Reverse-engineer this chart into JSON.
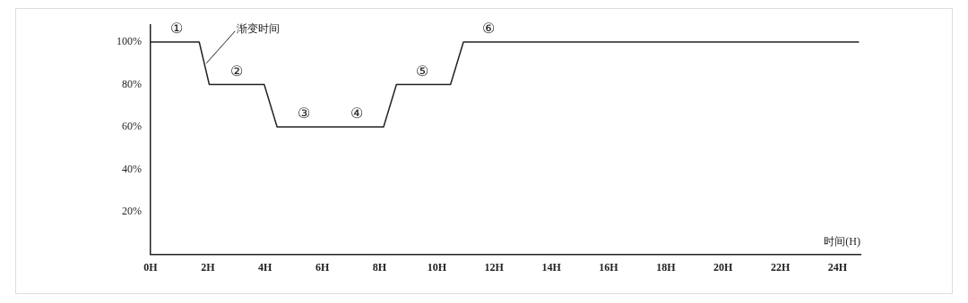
{
  "chart_data": {
    "type": "line",
    "xlabel": "时间(H)",
    "x": [
      0,
      1.7,
      2.05,
      3.97,
      4.42,
      8.14,
      8.59,
      10.48,
      10.93,
      24.75
    ],
    "series": [
      {
        "color": "#222222",
        "values": [
          100,
          100,
          80,
          80,
          60,
          60,
          80,
          80,
          100,
          100
        ]
      }
    ],
    "xlim": [
      0,
      24.8
    ],
    "xticks": [
      {
        "value": 0,
        "label": "0H"
      },
      {
        "value": 2,
        "label": "2H"
      },
      {
        "value": 4,
        "label": "4H"
      },
      {
        "value": 6,
        "label": "6H"
      },
      {
        "value": 8,
        "label": "8H"
      },
      {
        "value": 10,
        "label": "10H"
      },
      {
        "value": 12,
        "label": "12H"
      },
      {
        "value": 14,
        "label": "14H"
      },
      {
        "value": 16,
        "label": "16H"
      },
      {
        "value": 18,
        "label": "18H"
      },
      {
        "value": 20,
        "label": "20H"
      },
      {
        "value": 22,
        "label": "22H"
      },
      {
        "value": 24,
        "label": "24H"
      }
    ],
    "ylim": [
      0,
      108
    ],
    "yticks": [
      {
        "value": 20,
        "label": "20%"
      },
      {
        "value": 40,
        "label": "40%"
      },
      {
        "value": 60,
        "label": "60%"
      },
      {
        "value": 80,
        "label": "80%"
      },
      {
        "value": 100,
        "label": "100%"
      }
    ],
    "annotations": [
      {
        "text": "①",
        "x": 0.9,
        "y": 100
      },
      {
        "text": "②",
        "x": 3.0,
        "y": 80
      },
      {
        "text": "③",
        "x": 5.35,
        "y": 60
      },
      {
        "text": "④",
        "x": 7.2,
        "y": 60
      },
      {
        "text": "⑤",
        "x": 9.5,
        "y": 80
      },
      {
        "text": "⑥",
        "x": 11.8,
        "y": 100
      },
      {
        "text": "渐变时间",
        "x": 1.95,
        "y": 90
      }
    ],
    "grid": false,
    "legend": false,
    "marker": "none",
    "line_style": "solid"
  }
}
